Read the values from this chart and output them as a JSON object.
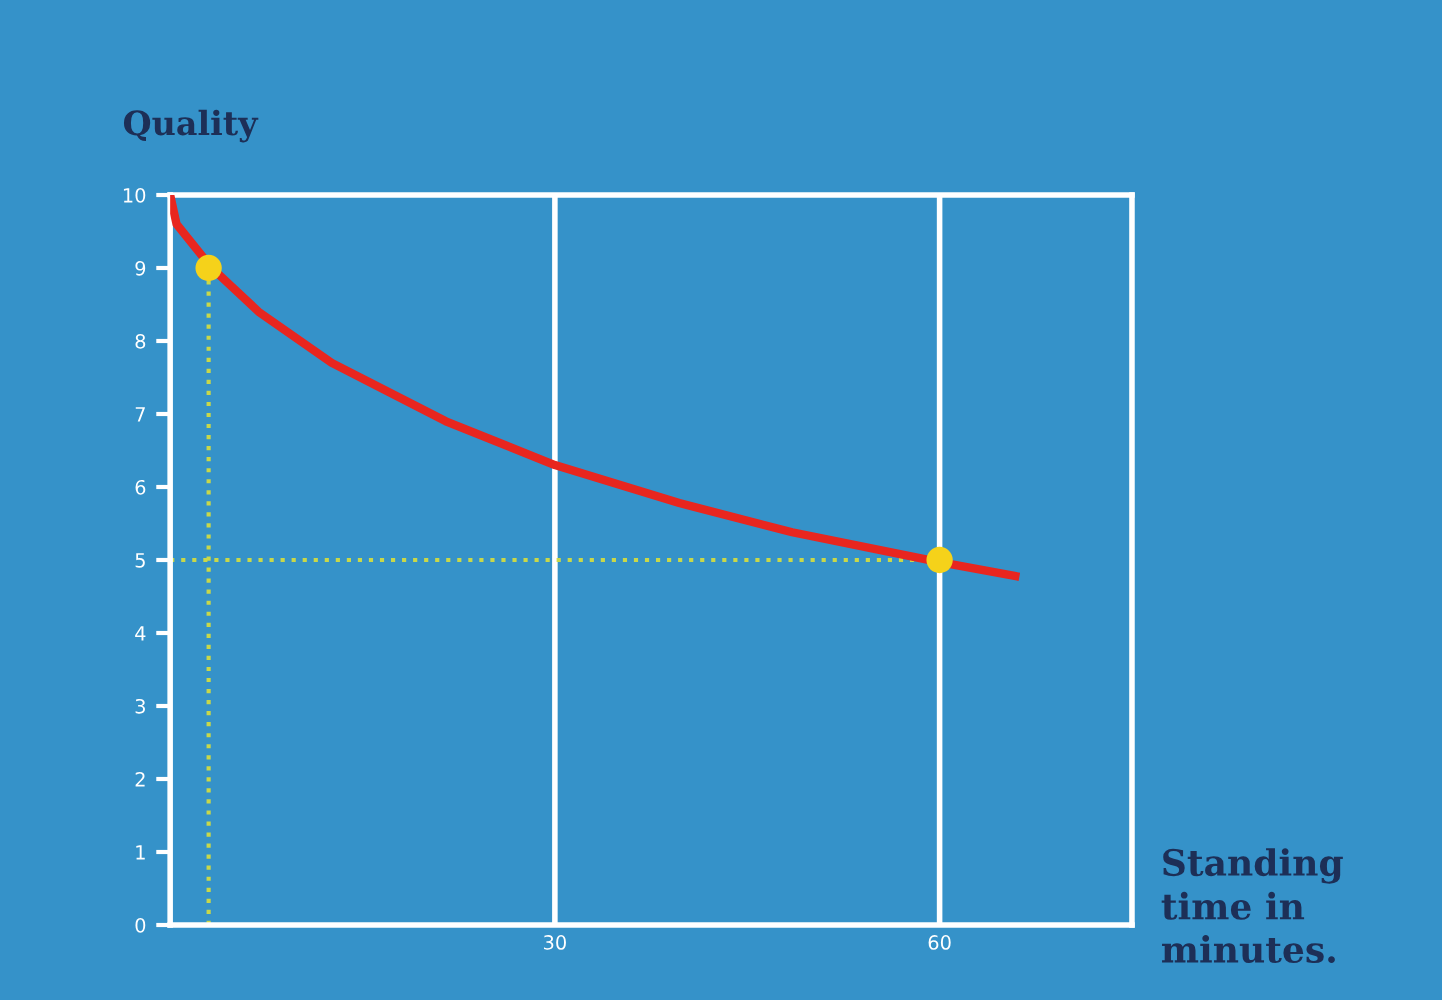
{
  "chart_data": {
    "type": "line",
    "ylabel": "Quality",
    "xlabel": "Standing time in minutes.",
    "xlim": [
      0,
      75
    ],
    "ylim": [
      0,
      10
    ],
    "xticks": [
      30,
      60
    ],
    "yticks": [
      0,
      1,
      2,
      3,
      4,
      5,
      6,
      7,
      8,
      9,
      10
    ],
    "grid": "x",
    "series": [
      {
        "color": "#e8261f",
        "x": [
          0,
          0.5,
          3.25,
          6.9,
          12.6,
          21.5,
          30,
          39.7,
          48.5,
          60,
          65.9
        ],
        "values": [
          10,
          9.6,
          9.0,
          8.4,
          7.7,
          6.9,
          6.3,
          5.78,
          5.38,
          4.97,
          4.78
        ]
      },
      {
        "type": "scatter",
        "color": "#f5d21a",
        "x": [
          3,
          60
        ],
        "values": [
          9,
          5
        ]
      }
    ],
    "ref_lines": [
      {
        "axis": "x",
        "value": 3,
        "color": "#c8d84a",
        "line_style": "dotted"
      },
      {
        "axis": "y",
        "value": 5,
        "color": "#c8d84a",
        "line_style": "dotted"
      }
    ]
  }
}
